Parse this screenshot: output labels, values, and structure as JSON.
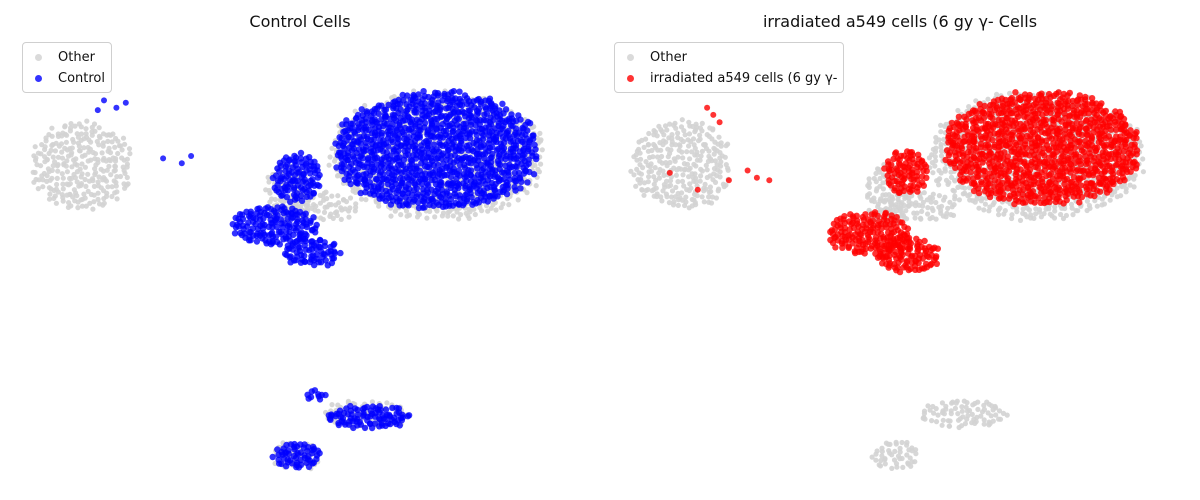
{
  "figure": {
    "colors": {
      "other": "#d3d3d3",
      "control": "#0000ff",
      "irradiated": "#ff0000"
    }
  },
  "chart_data": [
    {
      "type": "scatter",
      "title": "Control Cells",
      "xlabel": "",
      "ylabel": "",
      "grid": false,
      "axes_visible": false,
      "legend_placement": "upper-left",
      "legend": [
        "Other",
        "Control"
      ],
      "series": [
        {
          "name": "Other",
          "color": "#d3d3d3",
          "regions": [
            {
              "shape": "blob",
              "center": [
                2.0,
                12.8
              ],
              "radii": [
                1.6,
                1.8
              ]
            },
            {
              "shape": "blob",
              "center": [
                13.4,
                13.2
              ],
              "radii": [
                3.4,
                2.6
              ]
            },
            {
              "shape": "blob",
              "center": [
                8.6,
                11.6
              ],
              "radii": [
                0.7,
                1.3
              ]
            },
            {
              "shape": "blob",
              "center": [
                9.6,
                11.1
              ],
              "radii": [
                1.3,
                0.6
              ]
            },
            {
              "shape": "blob",
              "center": [
                11.1,
                2.5
              ],
              "radii": [
                1.4,
                0.6
              ]
            },
            {
              "shape": "blob",
              "center": [
                8.9,
                0.8
              ],
              "radii": [
                0.8,
                0.6
              ]
            }
          ]
        },
        {
          "name": "Control",
          "color": "#0000ff",
          "regions": [
            {
              "shape": "blob",
              "center": [
                13.4,
                13.4
              ],
              "radii": [
                3.2,
                2.4
              ]
            },
            {
              "shape": "blob",
              "center": [
                8.2,
                10.3
              ],
              "radii": [
                1.4,
                0.8
              ]
            },
            {
              "shape": "blob",
              "center": [
                9.4,
                9.2
              ],
              "radii": [
                0.9,
                0.6
              ]
            },
            {
              "shape": "blob",
              "center": [
                8.9,
                12.3
              ],
              "radii": [
                0.8,
                1.0
              ]
            },
            {
              "shape": "blob",
              "center": [
                11.2,
                2.4
              ],
              "radii": [
                1.3,
                0.5
              ]
            },
            {
              "shape": "blob",
              "center": [
                9.5,
                3.3
              ],
              "radii": [
                0.35,
                0.25
              ]
            },
            {
              "shape": "blob",
              "center": [
                8.9,
                0.8
              ],
              "radii": [
                0.75,
                0.55
              ]
            }
          ],
          "sparse_points": [
            [
              2.7,
              15.5
            ],
            [
              3.1,
              15.2
            ],
            [
              3.4,
              15.4
            ],
            [
              2.5,
              15.1
            ],
            [
              4.6,
              13.1
            ],
            [
              5.2,
              12.9
            ],
            [
              5.5,
              13.2
            ]
          ]
        }
      ]
    },
    {
      "type": "scatter",
      "title": "irradiated a549 cells (6 gy γ- Cells",
      "xlabel": "",
      "ylabel": "",
      "grid": false,
      "axes_visible": false,
      "legend_placement": "upper-left",
      "legend": [
        "Other",
        "irradiated a549 cells (6 gy γ-"
      ],
      "series": [
        {
          "name": "Other",
          "color": "#d3d3d3",
          "regions": [
            {
              "shape": "blob",
              "center": [
                2.0,
                12.8
              ],
              "radii": [
                1.6,
                1.8
              ]
            },
            {
              "shape": "blob",
              "center": [
                13.4,
                13.2
              ],
              "radii": [
                3.4,
                2.6
              ]
            },
            {
              "shape": "blob",
              "center": [
                8.6,
                11.6
              ],
              "radii": [
                0.7,
                1.3
              ]
            },
            {
              "shape": "blob",
              "center": [
                9.6,
                11.1
              ],
              "radii": [
                1.3,
                0.6
              ]
            },
            {
              "shape": "blob",
              "center": [
                11.1,
                2.5
              ],
              "radii": [
                1.4,
                0.6
              ]
            },
            {
              "shape": "blob",
              "center": [
                8.9,
                0.8
              ],
              "radii": [
                0.8,
                0.6
              ]
            }
          ]
        },
        {
          "name": "irradiated a549 cells (6 gy γ-",
          "color": "#ff0000",
          "regions": [
            {
              "shape": "blob",
              "center": [
                13.6,
                13.5
              ],
              "radii": [
                3.1,
                2.3
              ]
            },
            {
              "shape": "blob",
              "center": [
                8.0,
                10.0
              ],
              "radii": [
                1.3,
                0.9
              ]
            },
            {
              "shape": "blob",
              "center": [
                9.3,
                9.1
              ],
              "radii": [
                1.0,
                0.7
              ]
            },
            {
              "shape": "blob",
              "center": [
                9.2,
                12.5
              ],
              "radii": [
                0.7,
                0.9
              ]
            }
          ],
          "sparse_points": [
            [
              2.8,
              15.2
            ],
            [
              3.2,
              14.6
            ],
            [
              3.0,
              14.9
            ],
            [
              1.6,
              12.5
            ],
            [
              2.5,
              11.8
            ],
            [
              3.5,
              12.2
            ],
            [
              4.1,
              12.6
            ],
            [
              4.4,
              12.3
            ],
            [
              4.8,
              12.2
            ]
          ]
        }
      ]
    }
  ],
  "xlim": [
    0,
    18
  ],
  "ylim": [
    0,
    18
  ]
}
